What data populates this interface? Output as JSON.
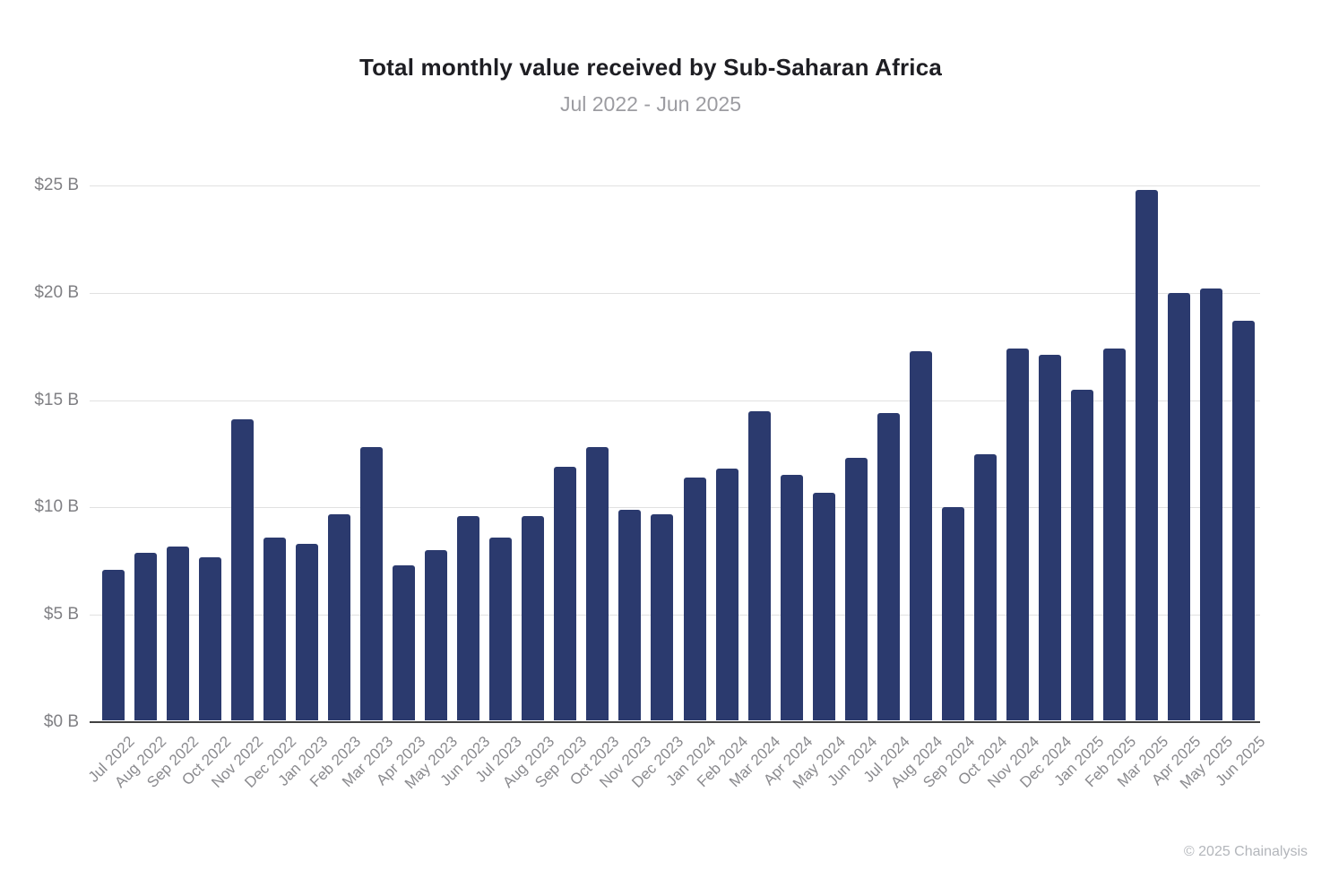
{
  "header": {
    "title": "Total monthly value received by Sub-Saharan Africa",
    "subtitle": "Jul 2022 - Jun 2025"
  },
  "footer": {
    "copyright": "© 2025 Chainalysis"
  },
  "colors": {
    "bar": "#2b3a6e",
    "gridline": "#e1e1e1",
    "axis_line": "#414141",
    "title_text": "#1e1e23",
    "subtitle_text": "#9c9ca1",
    "tick_text": "#8a8a8e",
    "background": "#ffffff"
  },
  "chart_data": {
    "type": "bar",
    "title": "Total monthly value received by Sub-Saharan Africa",
    "subtitle": "Jul 2022 - Jun 2025",
    "xlabel": "",
    "ylabel": "",
    "ylim": [
      0,
      25
    ],
    "grid": true,
    "legend": "none",
    "y_ticks": [
      {
        "label": "$0 B",
        "value": 0
      },
      {
        "label": "$5 B",
        "value": 5
      },
      {
        "label": "$10 B",
        "value": 10
      },
      {
        "label": "$15 B",
        "value": 15
      },
      {
        "label": "$20 B",
        "value": 20
      },
      {
        "label": "$25 B",
        "value": 25
      }
    ],
    "categories": [
      "Jul 2022",
      "Aug 2022",
      "Sep 2022",
      "Oct 2022",
      "Nov 2022",
      "Dec 2022",
      "Jan 2023",
      "Feb 2023",
      "Mar 2023",
      "Apr 2023",
      "May 2023",
      "Jun 2023",
      "Jul 2023",
      "Aug 2023",
      "Sep 2023",
      "Oct 2023",
      "Nov 2023",
      "Dec 2023",
      "Jan 2024",
      "Feb 2024",
      "Mar 2024",
      "Apr 2024",
      "May 2024",
      "Jun 2024",
      "Jul 2024",
      "Aug 2024",
      "Sep 2024",
      "Oct 2024",
      "Nov 2024",
      "Dec 2024",
      "Jan 2025",
      "Feb 2025",
      "Mar 2025",
      "Apr 2025",
      "May 2025",
      "Jun 2025"
    ],
    "values": [
      7.1,
      7.9,
      8.2,
      7.7,
      14.1,
      8.6,
      8.3,
      9.7,
      12.8,
      7.3,
      8.0,
      9.6,
      8.6,
      9.6,
      11.9,
      12.8,
      9.9,
      9.7,
      11.4,
      11.8,
      14.5,
      11.5,
      10.7,
      12.3,
      14.4,
      17.3,
      10.0,
      12.5,
      17.4,
      17.1,
      15.5,
      17.4,
      24.8,
      20.0,
      20.2,
      18.7
    ]
  }
}
